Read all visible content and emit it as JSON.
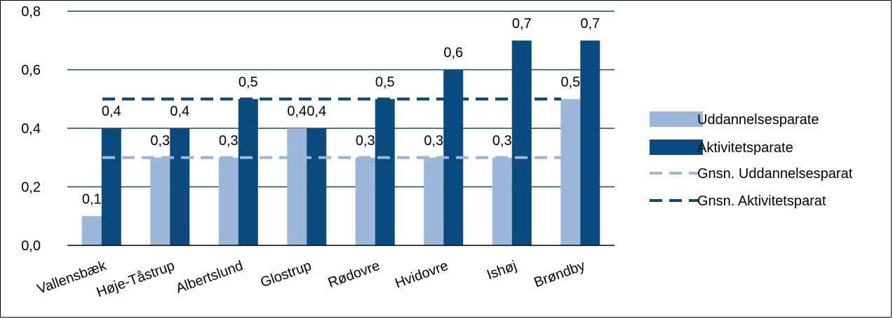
{
  "chart_data": {
    "type": "bar",
    "categories": [
      "Vallensbæk",
      "Høje-Tåstrup",
      "Albertslund",
      "Glostrup",
      "Rødovre",
      "Hvidovre",
      "Ishøj",
      "Brøndby"
    ],
    "series": [
      {
        "name": "Uddannelsesparate",
        "values": [
          0.1,
          0.3,
          0.3,
          0.4,
          0.3,
          0.3,
          0.3,
          0.5
        ],
        "labels": [
          "0,1",
          "0,3",
          "0,3",
          "0,4",
          "0,3",
          "0,3",
          "0,3",
          "0,5"
        ],
        "color": "#9bb7d9"
      },
      {
        "name": "Aktivitetsparate",
        "values": [
          0.4,
          0.4,
          0.5,
          0.4,
          0.5,
          0.6,
          0.7,
          0.7
        ],
        "labels": [
          "0,4",
          "0,4",
          "0,5",
          "0,4",
          "0,5",
          "0,6",
          "0,7",
          "0,7"
        ],
        "color": "#0b4a7d"
      }
    ],
    "reference_lines": [
      {
        "name": "Gnsn. Uddannelsesparat",
        "value": 0.3,
        "color": "#9bb7d9",
        "style": "dashed"
      },
      {
        "name": "Gnsn. Aktivitetsparat",
        "value": 0.5,
        "color": "#0b4a7d",
        "style": "dashed"
      }
    ],
    "yticks": [
      "0,0",
      "0,2",
      "0,4",
      "0,6",
      "0,8"
    ],
    "ylim": [
      0,
      0.8
    ],
    "grid": true,
    "legend_position": "right",
    "title": "",
    "xlabel": "",
    "ylabel": ""
  }
}
